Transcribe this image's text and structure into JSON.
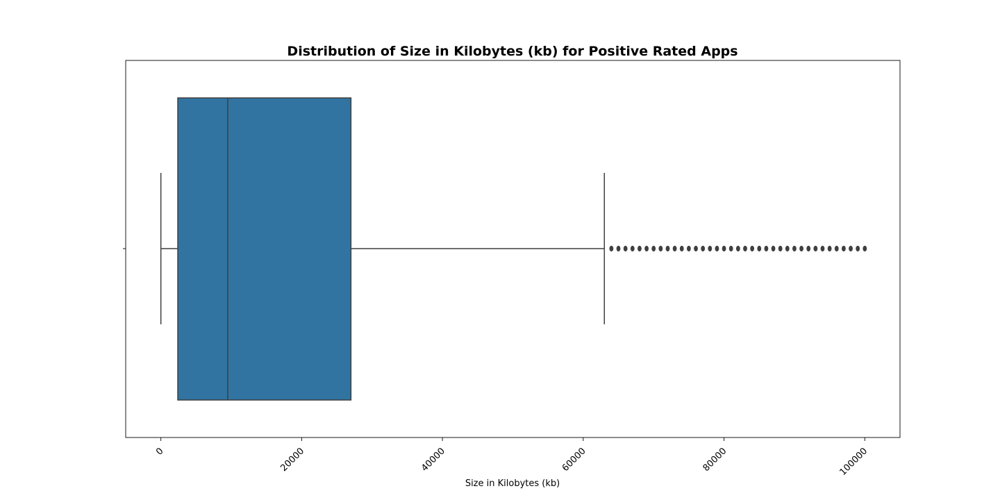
{
  "chart_data": {
    "type": "box",
    "orientation": "horizontal",
    "title": "Distribution of Size in Kilobytes (kb) for Positive Rated Apps",
    "xlabel": "Size in Kilobytes (kb)",
    "ylabel": "",
    "xlim": [
      -5000,
      105000
    ],
    "xticks": [
      0,
      20000,
      40000,
      60000,
      80000,
      100000
    ],
    "xtick_labels": [
      "0",
      "20000",
      "40000",
      "60000",
      "80000",
      "100000"
    ],
    "grid": false,
    "box": {
      "whisker_low": 0,
      "q1": 2400,
      "median": 9500,
      "q3": 27000,
      "whisker_high": 63000,
      "fill_color": "#3274a1",
      "line_color": "#3f3f3f"
    },
    "outliers": [
      64000,
      65000,
      66000,
      67000,
      68000,
      69000,
      70000,
      71000,
      72000,
      73000,
      74000,
      75000,
      76000,
      77000,
      78000,
      79000,
      80000,
      81000,
      82000,
      83000,
      84000,
      85000,
      86000,
      87000,
      88000,
      89000,
      90000,
      91000,
      92000,
      93000,
      94000,
      95000,
      96000,
      97000,
      98000,
      99000,
      100000
    ]
  }
}
